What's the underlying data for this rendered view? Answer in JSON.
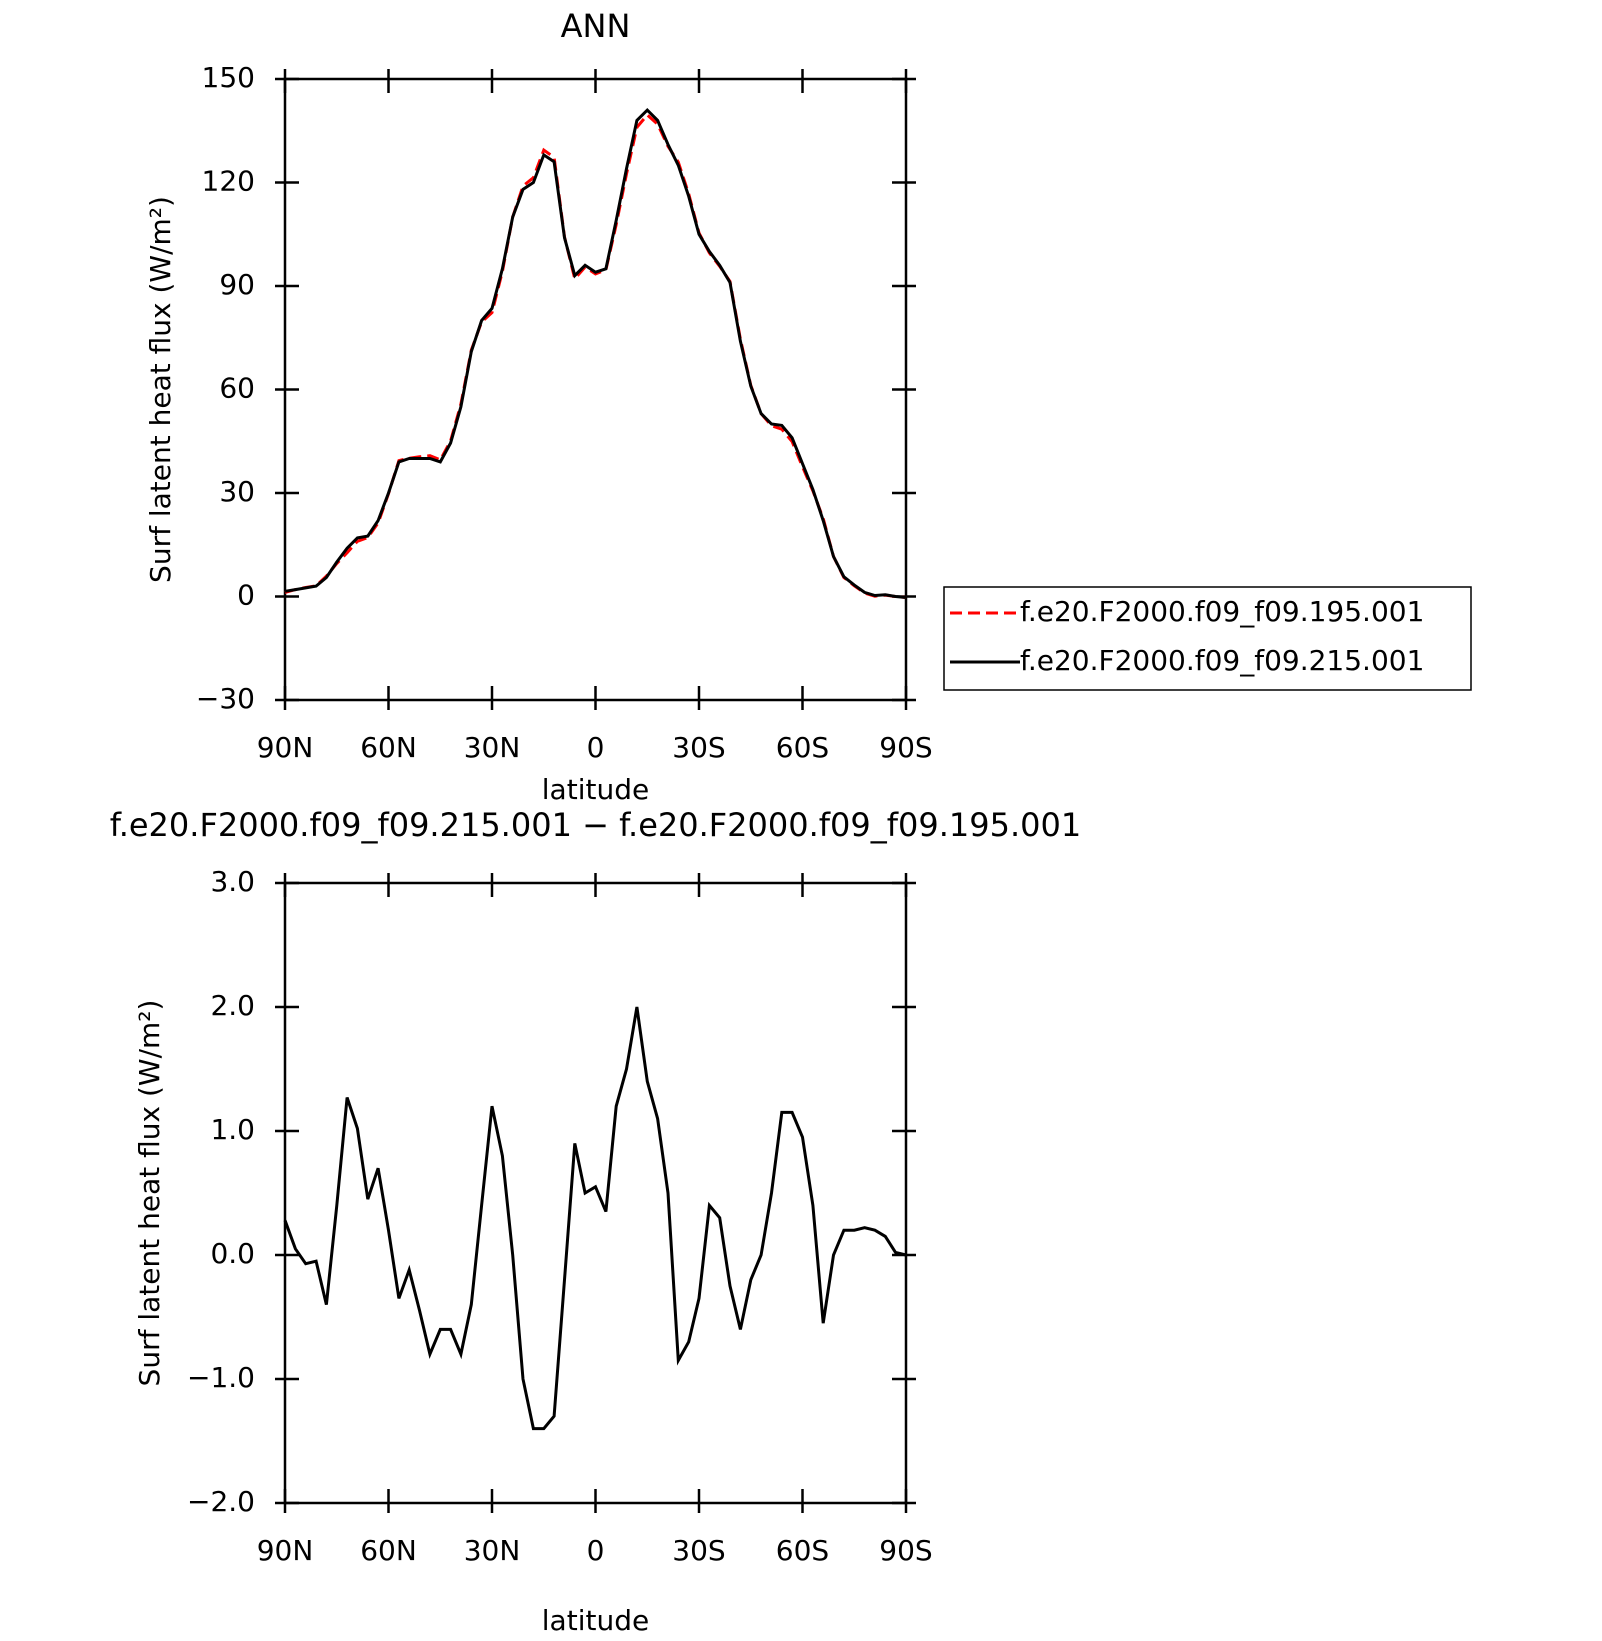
{
  "chart_data": [
    {
      "type": "line",
      "title": "ANN",
      "xlabel": "latitude",
      "ylabel": "Surf latent heat flux (W/m²)",
      "x": [
        90,
        87,
        84,
        81,
        78,
        75,
        72,
        69,
        66,
        63,
        60,
        57,
        54,
        51,
        48,
        45,
        42,
        39,
        36,
        33,
        30,
        27,
        24,
        21,
        18,
        15,
        12,
        9,
        6,
        3,
        0,
        -3,
        -6,
        -9,
        -12,
        -15,
        -18,
        -21,
        -24,
        -27,
        -30,
        -33,
        -36,
        -39,
        -42,
        -45,
        -48,
        -51,
        -54,
        -57,
        -60,
        -63,
        -66,
        -69,
        -72,
        -75,
        -78,
        -81,
        -84,
        -87,
        -90
      ],
      "series": [
        {
          "name": "f.e20.F2000.f09_f09.195.001",
          "color": "#ff0000",
          "dash": true,
          "values": [
            1.2,
            2.0,
            2.6,
            3.1,
            5.9,
            9.6,
            12.7,
            16.0,
            17.1,
            21.3,
            29.8,
            39.4,
            40.1,
            40.5,
            40.8,
            39.6,
            45.1,
            55.8,
            71.4,
            79.6,
            82.3,
            94.2,
            110.0,
            119.0,
            121.4,
            129.4,
            127.3,
            104.2,
            92.1,
            95.5,
            93.5,
            94.7,
            107.8,
            122.5,
            136.0,
            139.6,
            136.9,
            130.5,
            125.9,
            116.7,
            105.4,
            99.6,
            95.7,
            91.3,
            74.6,
            61.2,
            53.0,
            49.5,
            48.5,
            44.9,
            37.6,
            30.6,
            22.6,
            11.6,
            5.5,
            3.1,
            1.0,
            0.1,
            0.4,
            0.0,
            -0.3
          ]
        },
        {
          "name": "f.e20.F2000.f09_f09.215.001",
          "color": "#000000",
          "dash": false,
          "values": [
            1.5,
            2,
            2.5,
            3,
            5.5,
            10,
            14,
            17,
            17.5,
            22,
            30,
            39,
            40,
            40,
            40,
            39,
            44.5,
            55,
            71,
            80,
            83.5,
            95,
            110,
            118,
            120,
            128,
            126,
            104,
            93,
            96,
            94,
            95,
            109,
            124,
            138,
            141,
            138,
            131,
            125,
            116,
            105,
            100,
            96,
            91,
            74,
            61,
            53,
            50,
            49.6,
            46,
            38.5,
            31,
            22,
            11.6,
            5.7,
            3.3,
            1.2,
            0.3,
            0.5,
            0,
            -0.3
          ]
        }
      ],
      "xlim": [
        90,
        -90
      ],
      "xticks": [
        {
          "value": 90,
          "label": "90N"
        },
        {
          "value": 60,
          "label": "60N"
        },
        {
          "value": 30,
          "label": "30N"
        },
        0,
        {
          "value": -30,
          "label": "30S"
        },
        {
          "value": -60,
          "label": "60S"
        },
        {
          "value": -90,
          "label": "90S"
        }
      ],
      "ylim": [
        -30,
        150
      ],
      "yticks": [
        {
          "value": -30,
          "label": "−30"
        },
        0,
        30,
        60,
        90,
        120,
        150
      ],
      "legend": "right"
    },
    {
      "type": "line",
      "title": "f.e20.F2000.f09_f09.215.001 − f.e20.F2000.f09_f09.195.001",
      "xlabel": "latitude",
      "ylabel": "Surf latent heat flux (W/m²)",
      "x": [
        90,
        87,
        84,
        81,
        78,
        75,
        72,
        69,
        66,
        63,
        60,
        57,
        54,
        51,
        48,
        45,
        42,
        39,
        36,
        33,
        30,
        27,
        24,
        21,
        18,
        15,
        12,
        9,
        6,
        3,
        0,
        -3,
        -6,
        -9,
        -12,
        -15,
        -18,
        -21,
        -24,
        -27,
        -30,
        -33,
        -36,
        -39,
        -42,
        -45,
        -48,
        -51,
        -54,
        -57,
        -60,
        -63,
        -66,
        -69,
        -72,
        -75,
        -78,
        -81,
        -84,
        -87,
        -90
      ],
      "series": [
        {
          "color": "#000000",
          "dash": false,
          "values": [
            0.28,
            0.05,
            -0.07,
            -0.05,
            -0.4,
            0.4,
            1.27,
            1.02,
            0.45,
            0.7,
            0.2,
            -0.35,
            -0.12,
            -0.45,
            -0.8,
            -0.6,
            -0.6,
            -0.8,
            -0.4,
            0.4,
            1.2,
            0.8,
            0.0,
            -1.0,
            -1.4,
            -1.4,
            -1.3,
            -0.2,
            0.9,
            0.5,
            0.55,
            0.35,
            1.2,
            1.5,
            2.0,
            1.4,
            1.1,
            0.5,
            -0.85,
            -0.7,
            -0.35,
            0.4,
            0.3,
            -0.25,
            -0.6,
            -0.2,
            0.0,
            0.5,
            1.15,
            1.15,
            0.95,
            0.4,
            -0.55,
            0.0,
            0.2,
            0.2,
            0.22,
            0.2,
            0.15,
            0.02,
            0.0
          ]
        }
      ],
      "xlim": [
        90,
        -90
      ],
      "xticks": [
        {
          "value": 90,
          "label": "90N"
        },
        {
          "value": 60,
          "label": "60N"
        },
        {
          "value": 30,
          "label": "30N"
        },
        0,
        {
          "value": -30,
          "label": "30S"
        },
        {
          "value": -60,
          "label": "60S"
        },
        {
          "value": -90,
          "label": "90S"
        }
      ],
      "ylim": [
        -2,
        3
      ],
      "yticks": [
        {
          "value": -2,
          "label": "−2.0"
        },
        {
          "value": -1,
          "label": "−1.0"
        },
        {
          "value": 0,
          "label": "0.0"
        },
        {
          "value": 1,
          "label": "1.0"
        },
        {
          "value": 2,
          "label": "2.0"
        },
        {
          "value": 3,
          "label": "3.0"
        }
      ]
    }
  ]
}
